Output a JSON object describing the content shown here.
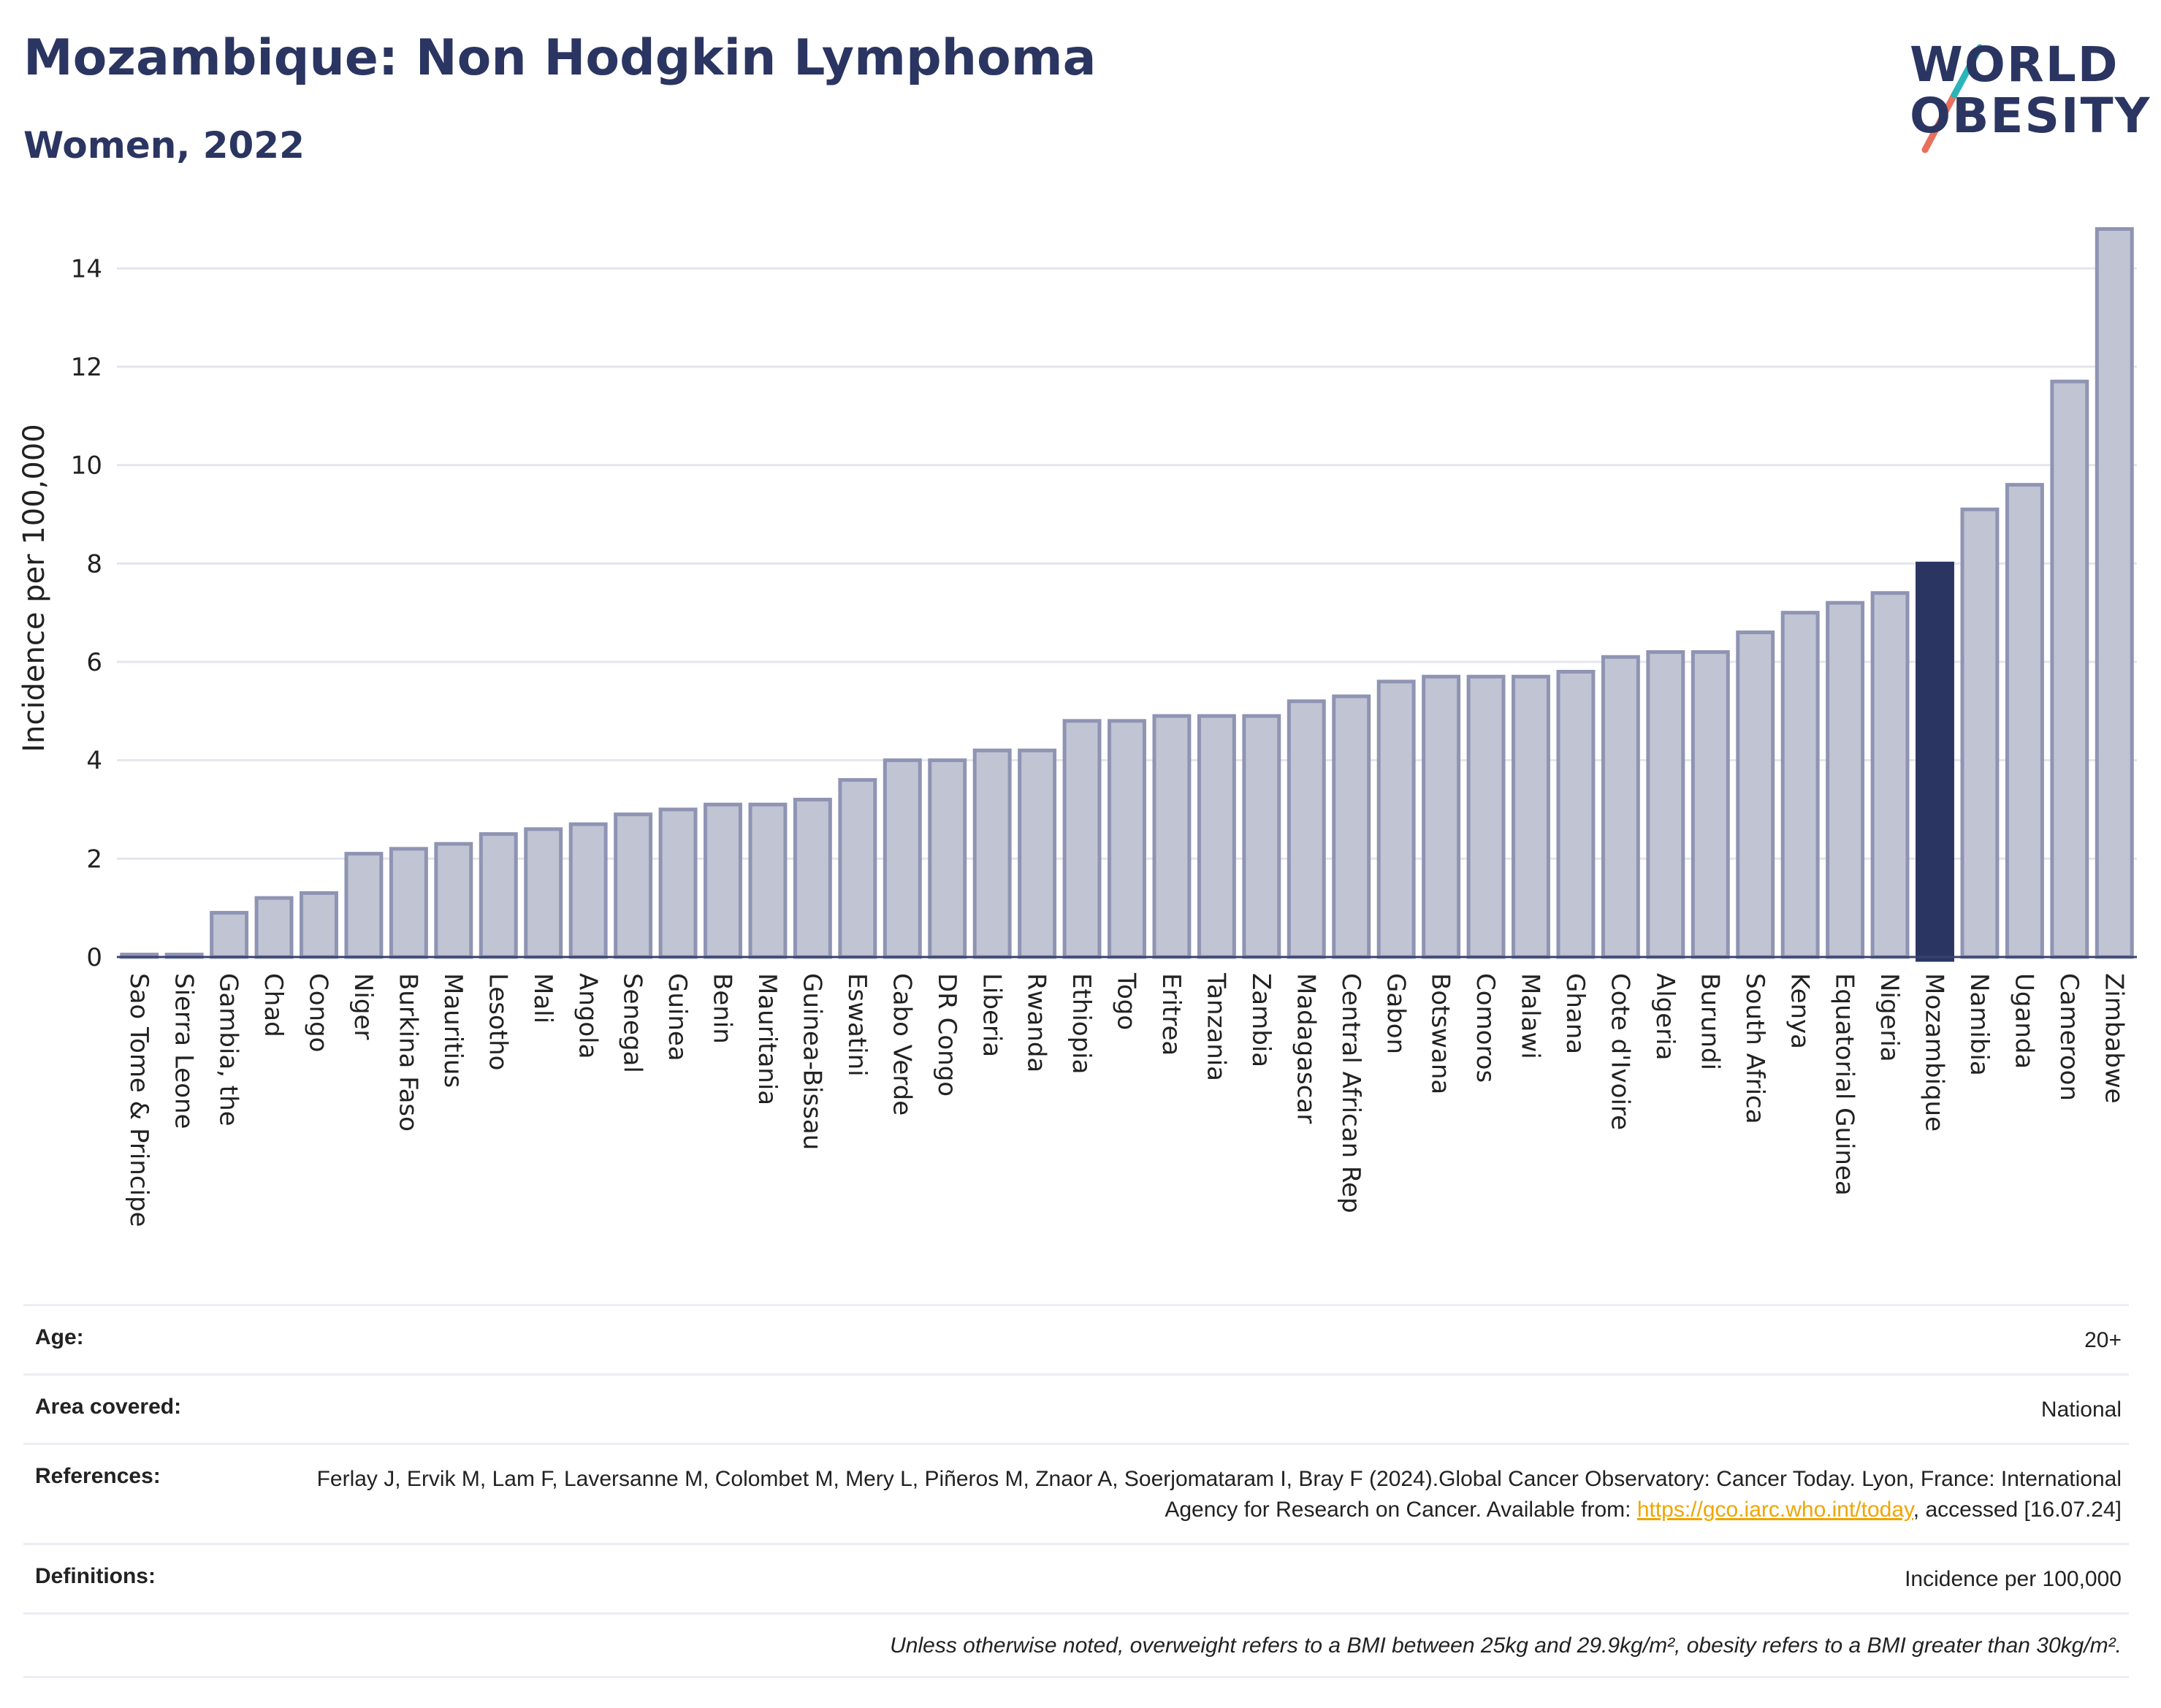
{
  "title": "Mozambique: Non Hodgkin Lymphoma",
  "subtitle": "Women, 2022",
  "logo": {
    "line1": "WORLD",
    "line2": "OBESITY",
    "accent_colors": [
      "#2bb5b8",
      "#e8705c"
    ]
  },
  "colors": {
    "bar": "#c0c4d3",
    "bar_stroke": "#8f94b3",
    "highlight": "#2b3562",
    "grid": "#e4e6ee"
  },
  "chart_data": {
    "type": "bar",
    "ylabel": "Incidence per 100,000",
    "xlabel": "",
    "ylim": [
      0,
      15
    ],
    "yticks": [
      0,
      2,
      4,
      6,
      8,
      10,
      12,
      14
    ],
    "grid": true,
    "highlight": "Mozambique",
    "categories": [
      "Sao Tome & Principe",
      "Sierra Leone",
      "Gambia, the",
      "Chad",
      "Congo",
      "Niger",
      "Burkina Faso",
      "Mauritius",
      "Lesotho",
      "Mali",
      "Angola",
      "Senegal",
      "Guinea",
      "Benin",
      "Mauritania",
      "Guinea-Bissau",
      "Eswatini",
      "Cabo Verde",
      "DR Congo",
      "Liberia",
      "Rwanda",
      "Ethiopia",
      "Togo",
      "Eritrea",
      "Tanzania",
      "Zambia",
      "Madagascar",
      "Central African Rep",
      "Gabon",
      "Botswana",
      "Comoros",
      "Malawi",
      "Ghana",
      "Cote d'Ivoire",
      "Algeria",
      "Burundi",
      "South Africa",
      "Kenya",
      "Equatorial Guinea",
      "Nigeria",
      "Mozambique",
      "Namibia",
      "Uganda",
      "Cameroon",
      "Zimbabwe"
    ],
    "values": [
      0.05,
      0.05,
      0.9,
      1.2,
      1.3,
      2.1,
      2.2,
      2.3,
      2.5,
      2.6,
      2.7,
      2.9,
      3.0,
      3.1,
      3.1,
      3.2,
      3.6,
      4.0,
      4.0,
      4.2,
      4.2,
      4.8,
      4.8,
      4.9,
      4.9,
      4.9,
      5.2,
      5.3,
      5.6,
      5.7,
      5.7,
      5.7,
      5.8,
      6.1,
      6.2,
      6.2,
      6.6,
      7.0,
      7.2,
      7.4,
      8.0,
      9.1,
      9.6,
      11.7,
      14.8
    ]
  },
  "info": {
    "age_label": "Age:",
    "age_value": "20+",
    "area_label": "Area covered:",
    "area_value": "National",
    "ref_label": "References:",
    "ref_text1": "Ferlay J, Ervik M, Lam F, Laversanne M, Colombet M, Mery L, Piñeros M, Znaor A, Soerjomataram I, Bray F (2024).Global Cancer Observatory: Cancer Today. Lyon, France: International Agency for Research on Cancer. Available from: ",
    "ref_link": "https://gco.iarc.who.int/today",
    "ref_text2": ", accessed [16.07.24]",
    "def_label": "Definitions:",
    "def_value": "Incidence per 100,000",
    "note": "Unless otherwise noted, overweight refers to a BMI between 25kg and 29.9kg/m², obesity refers to a BMI greater than 30kg/m²."
  }
}
